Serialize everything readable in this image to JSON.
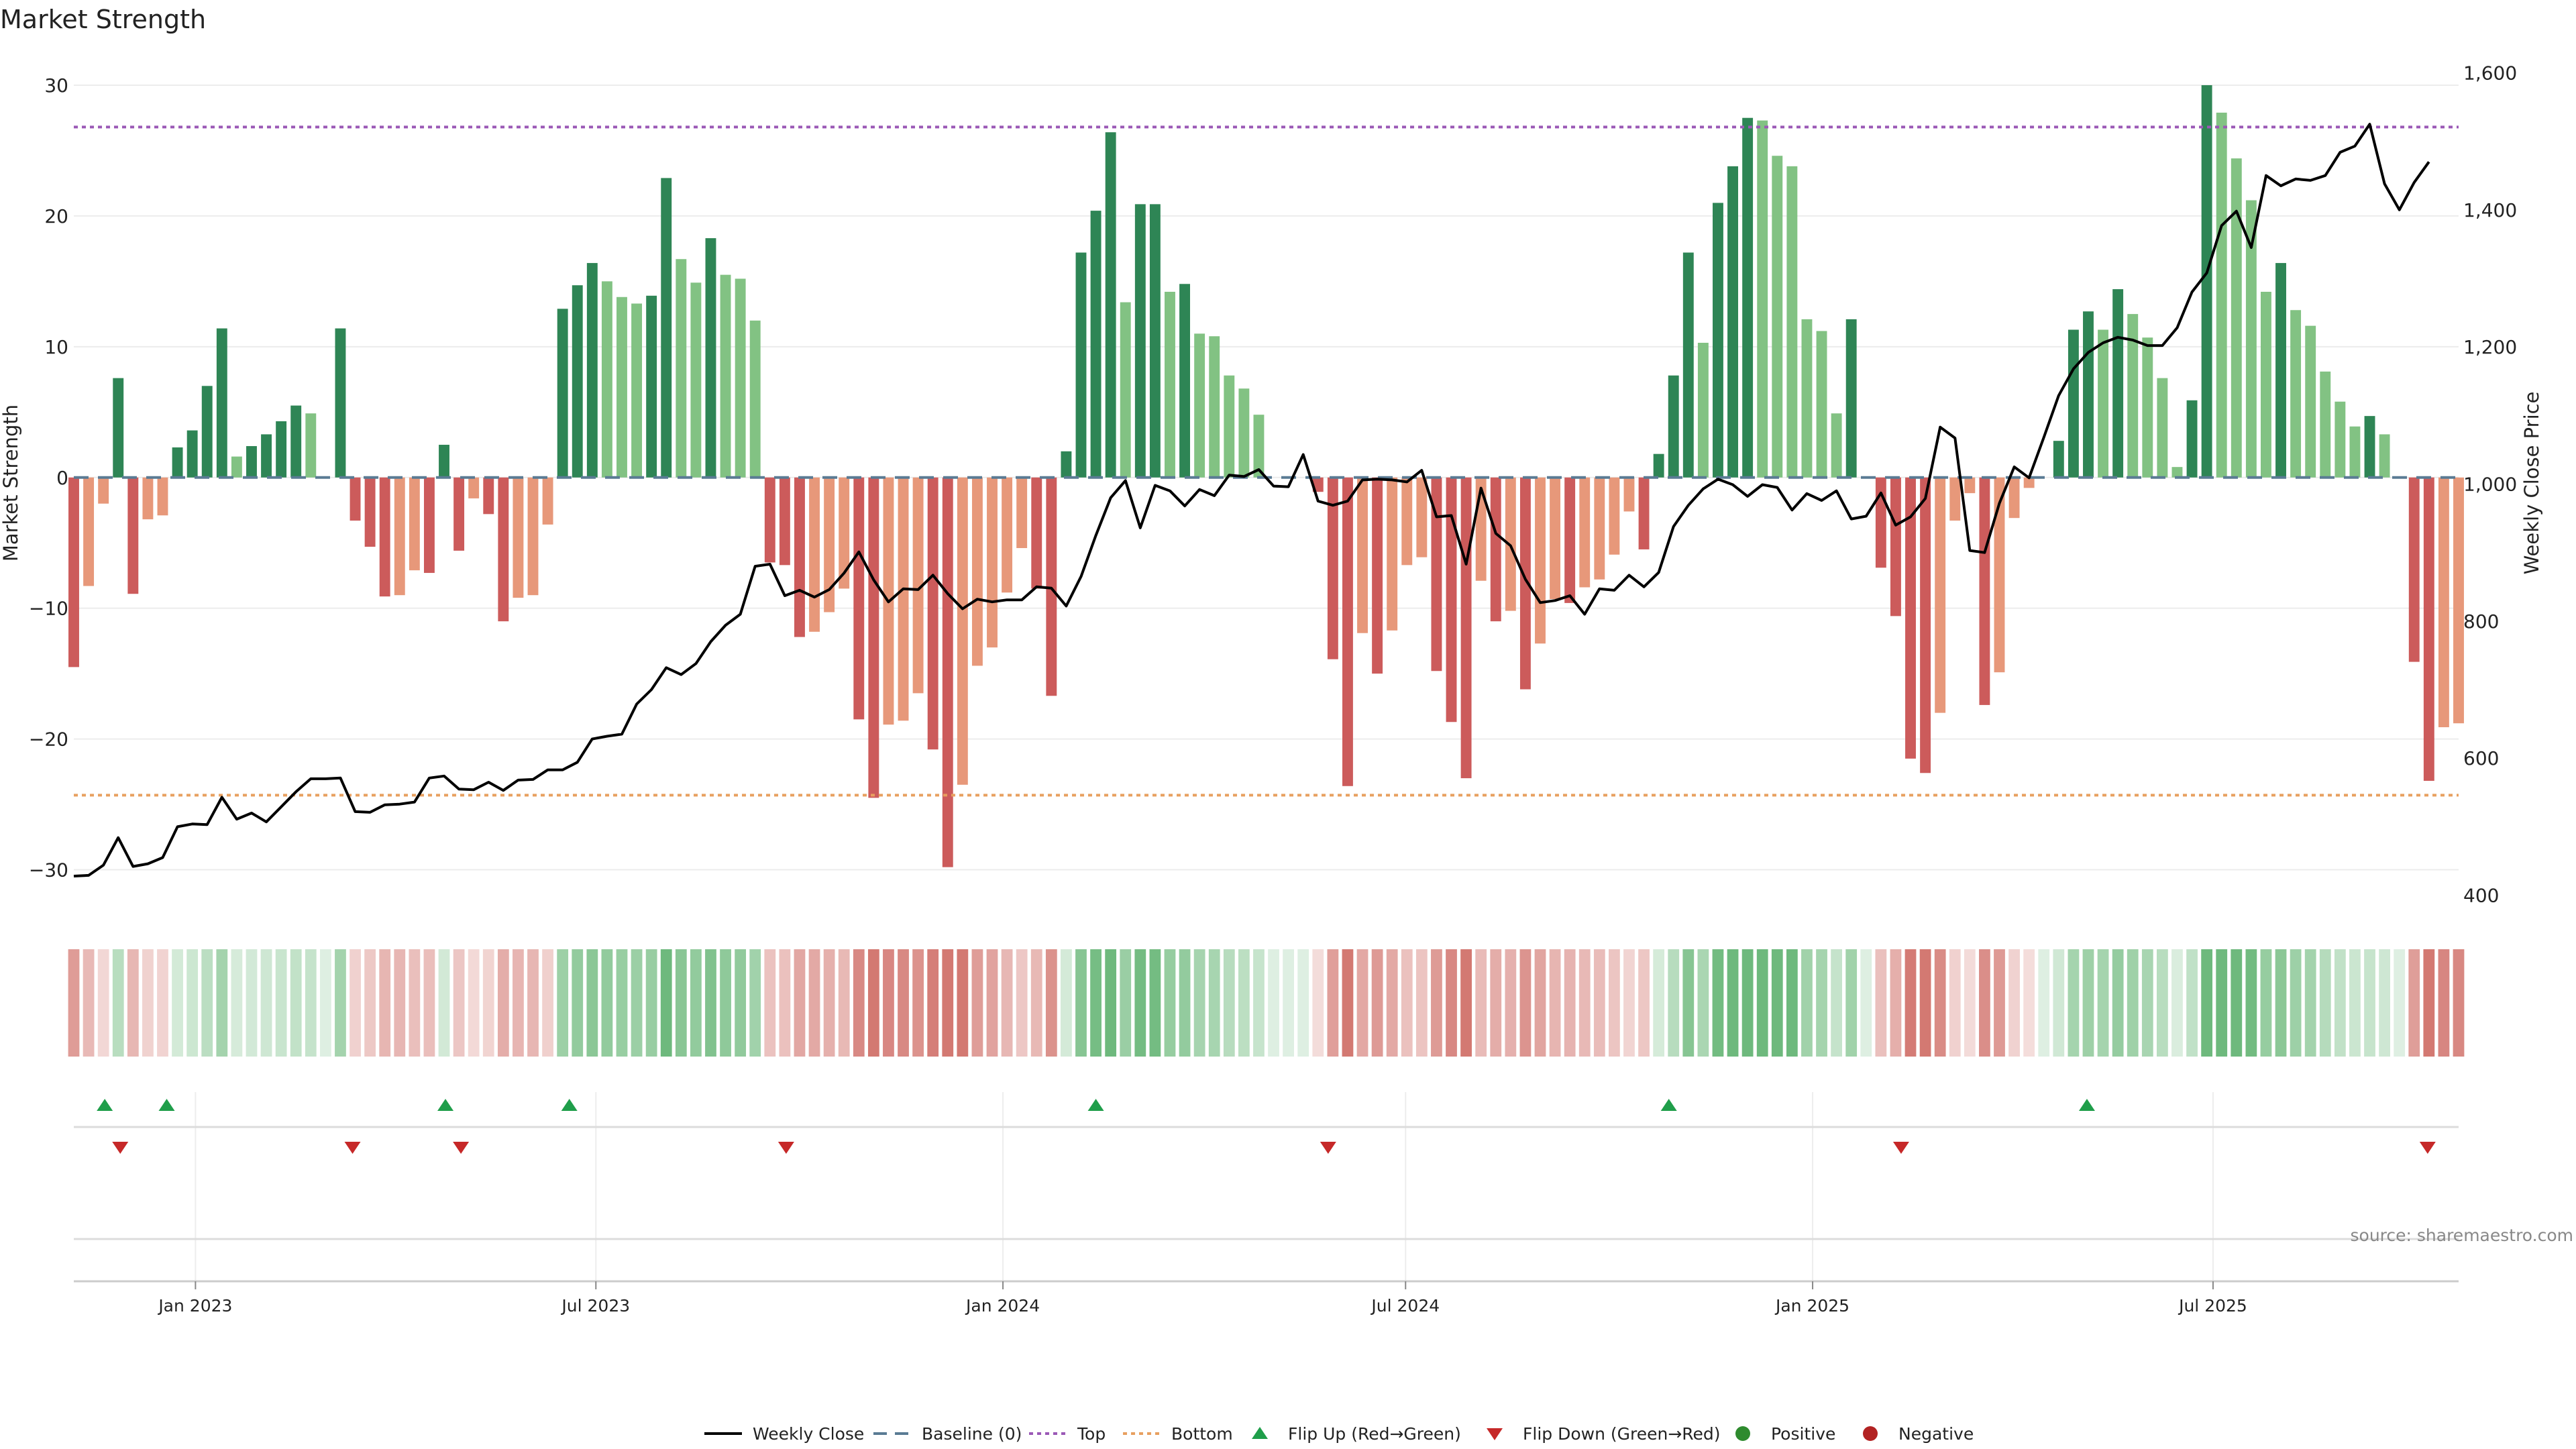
{
  "chart_data": {
    "type": "bar",
    "title": "Market Strength",
    "ylabel": "Market Strength",
    "y2label": "Weekly Close Price",
    "ylim": [
      -33,
      32
    ],
    "y2lim": [
      380,
      1620
    ],
    "yticks": [
      "30",
      "20",
      "10",
      "0",
      "−10",
      "−20",
      "−30"
    ],
    "y2ticks": [
      "1,600",
      "1,400",
      "1,200",
      "1,000",
      "800",
      "600",
      "400"
    ],
    "x_start": "2022-11-07",
    "x_end": "2025-10-20",
    "x_ticks": [
      {
        "label": "Jan 2023",
        "date": "2023-01-01"
      },
      {
        "label": "Jul 2023",
        "date": "2023-07-01"
      },
      {
        "label": "Jan 2024",
        "date": "2024-01-01"
      },
      {
        "label": "Jul 2024",
        "date": "2024-07-01"
      },
      {
        "label": "Jan 2025",
        "date": "2025-01-01"
      },
      {
        "label": "Jul 2025",
        "date": "2025-07-01"
      }
    ],
    "top_level": 26.8,
    "bottom_level": -24.3,
    "market_strength": [
      -14.5,
      -8.3,
      -2,
      7.6,
      -8.9,
      -3.2,
      -2.9,
      2.3,
      3.6,
      7,
      11.4,
      1.6,
      2.4,
      3.3,
      4.3,
      5.5,
      4.9,
      0,
      11.4,
      -3.3,
      -5.3,
      -9.1,
      -9,
      -7.1,
      -7.3,
      2.5,
      -5.6,
      -1.6,
      -2.8,
      -11,
      -9.2,
      -9,
      -3.6,
      12.9,
      14.7,
      16.4,
      15,
      13.8,
      13.3,
      13.9,
      22.9,
      16.7,
      14.9,
      18.3,
      15.5,
      15.2,
      12,
      -6.5,
      -6.7,
      -12.2,
      -11.8,
      -10.3,
      -8.5,
      -18.5,
      -24.5,
      -18.9,
      -18.6,
      -16.5,
      -20.8,
      -29.8,
      -23.5,
      -14.4,
      -13,
      -8.8,
      -5.4,
      -8.5,
      -16.7,
      2,
      17.2,
      20.4,
      26.4,
      13.4,
      20.9,
      20.9,
      14.2,
      14.8,
      11,
      10.8,
      7.8,
      6.8,
      4.8,
      0,
      0,
      0,
      -1.1,
      -13.9,
      -23.6,
      -11.9,
      -15,
      -11.7,
      -6.7,
      -6.1,
      -14.8,
      -18.7,
      -23,
      -7.9,
      -11,
      -10.2,
      -16.2,
      -12.7,
      -9.3,
      -9.6,
      -8.4,
      -7.8,
      -5.9,
      -2.6,
      -5.5,
      1.8,
      7.8,
      17.2,
      10.3,
      21,
      23.8,
      27.5,
      27.3,
      24.6,
      23.8,
      12.1,
      11.2,
      4.9,
      12.1,
      0,
      -6.9,
      -10.6,
      -21.5,
      -22.6,
      -18,
      -3.3,
      -1.2,
      -17.4,
      -14.9,
      -3.1,
      -0.8,
      0,
      2.8,
      11.3,
      12.7,
      11.3,
      14.4,
      12.5,
      10.7,
      7.6,
      0.8,
      5.9,
      30,
      27.9,
      24.4,
      21.2,
      14.2,
      16.4,
      12.8,
      11.6,
      8.1,
      5.8,
      3.9,
      4.7,
      3.3,
      0,
      -14.1,
      -23.2,
      -19.1,
      -18.8
    ],
    "weekly_close": [
      428,
      429,
      444,
      484,
      442,
      446,
      455,
      500,
      504,
      503,
      543,
      511,
      520,
      507,
      529,
      551,
      570,
      570,
      571,
      522,
      521,
      532,
      533,
      536,
      571,
      574,
      555,
      554,
      565,
      553,
      568,
      569,
      583,
      583,
      594,
      628,
      632,
      635,
      679,
      700,
      732,
      722,
      738,
      770,
      794,
      810,
      880,
      883,
      837,
      845,
      835,
      846,
      870,
      901,
      860,
      828,
      847,
      846,
      867,
      840,
      818,
      832,
      828,
      831,
      831,
      850,
      848,
      822,
      865,
      925,
      980,
      1005,
      936,
      998,
      990,
      968,
      992,
      983,
      1013,
      1011,
      1021,
      997,
      996,
      1043,
      975,
      969,
      975,
      1006,
      1007,
      1006,
      1003,
      1020,
      952,
      954,
      883,
      994,
      928,
      910,
      861,
      827,
      830,
      837,
      810,
      847,
      845,
      867,
      850,
      871,
      938,
      969,
      993,
      1007,
      999,
      982,
      999,
      995,
      962,
      986,
      976,
      990,
      949,
      953,
      987,
      940,
      952,
      979,
      1083,
      1067,
      903,
      900,
      972,
      1025,
      1009,
      1068,
      1129,
      1168,
      1192,
      1206,
      1214,
      1210,
      1202,
      1202,
      1228,
      1280,
      1308,
      1377,
      1398,
      1345,
      1450,
      1435,
      1445,
      1443,
      1450,
      1484,
      1493,
      1525,
      1438,
      1400,
      1440,
      1470
    ],
    "signals_up": [
      "2022-11-21",
      "2022-12-19",
      "2023-04-24",
      "2023-06-19",
      "2024-02-12",
      "2024-10-28",
      "2025-05-05"
    ],
    "signals_down": [
      "2022-11-28",
      "2023-03-13",
      "2023-05-01",
      "2023-09-25",
      "2024-05-27",
      "2025-02-10",
      "2025-10-06"
    ],
    "legend": [
      "Weekly Close",
      "Baseline (0)",
      "Top",
      "Bottom",
      "Flip Up (Red→Green)",
      "Flip Down (Green→Red)",
      "Positive",
      "Negative"
    ],
    "legend_placement": "bottom-center",
    "grid": true,
    "colors": {
      "pos_dark": "#2e8555",
      "pos_light": "#82c283",
      "neg_dark": "#cc5b5b",
      "neg_light": "#e7987a",
      "line": "#000000",
      "baseline": "#5a7b94",
      "top": "#9b59b6",
      "bottom": "#e8a060",
      "flip_up": "#1f9e4a",
      "flip_down": "#c62828",
      "positive": "#2e8b2e",
      "negative": "#b22222"
    }
  },
  "source": "source: sharemaestro.com"
}
